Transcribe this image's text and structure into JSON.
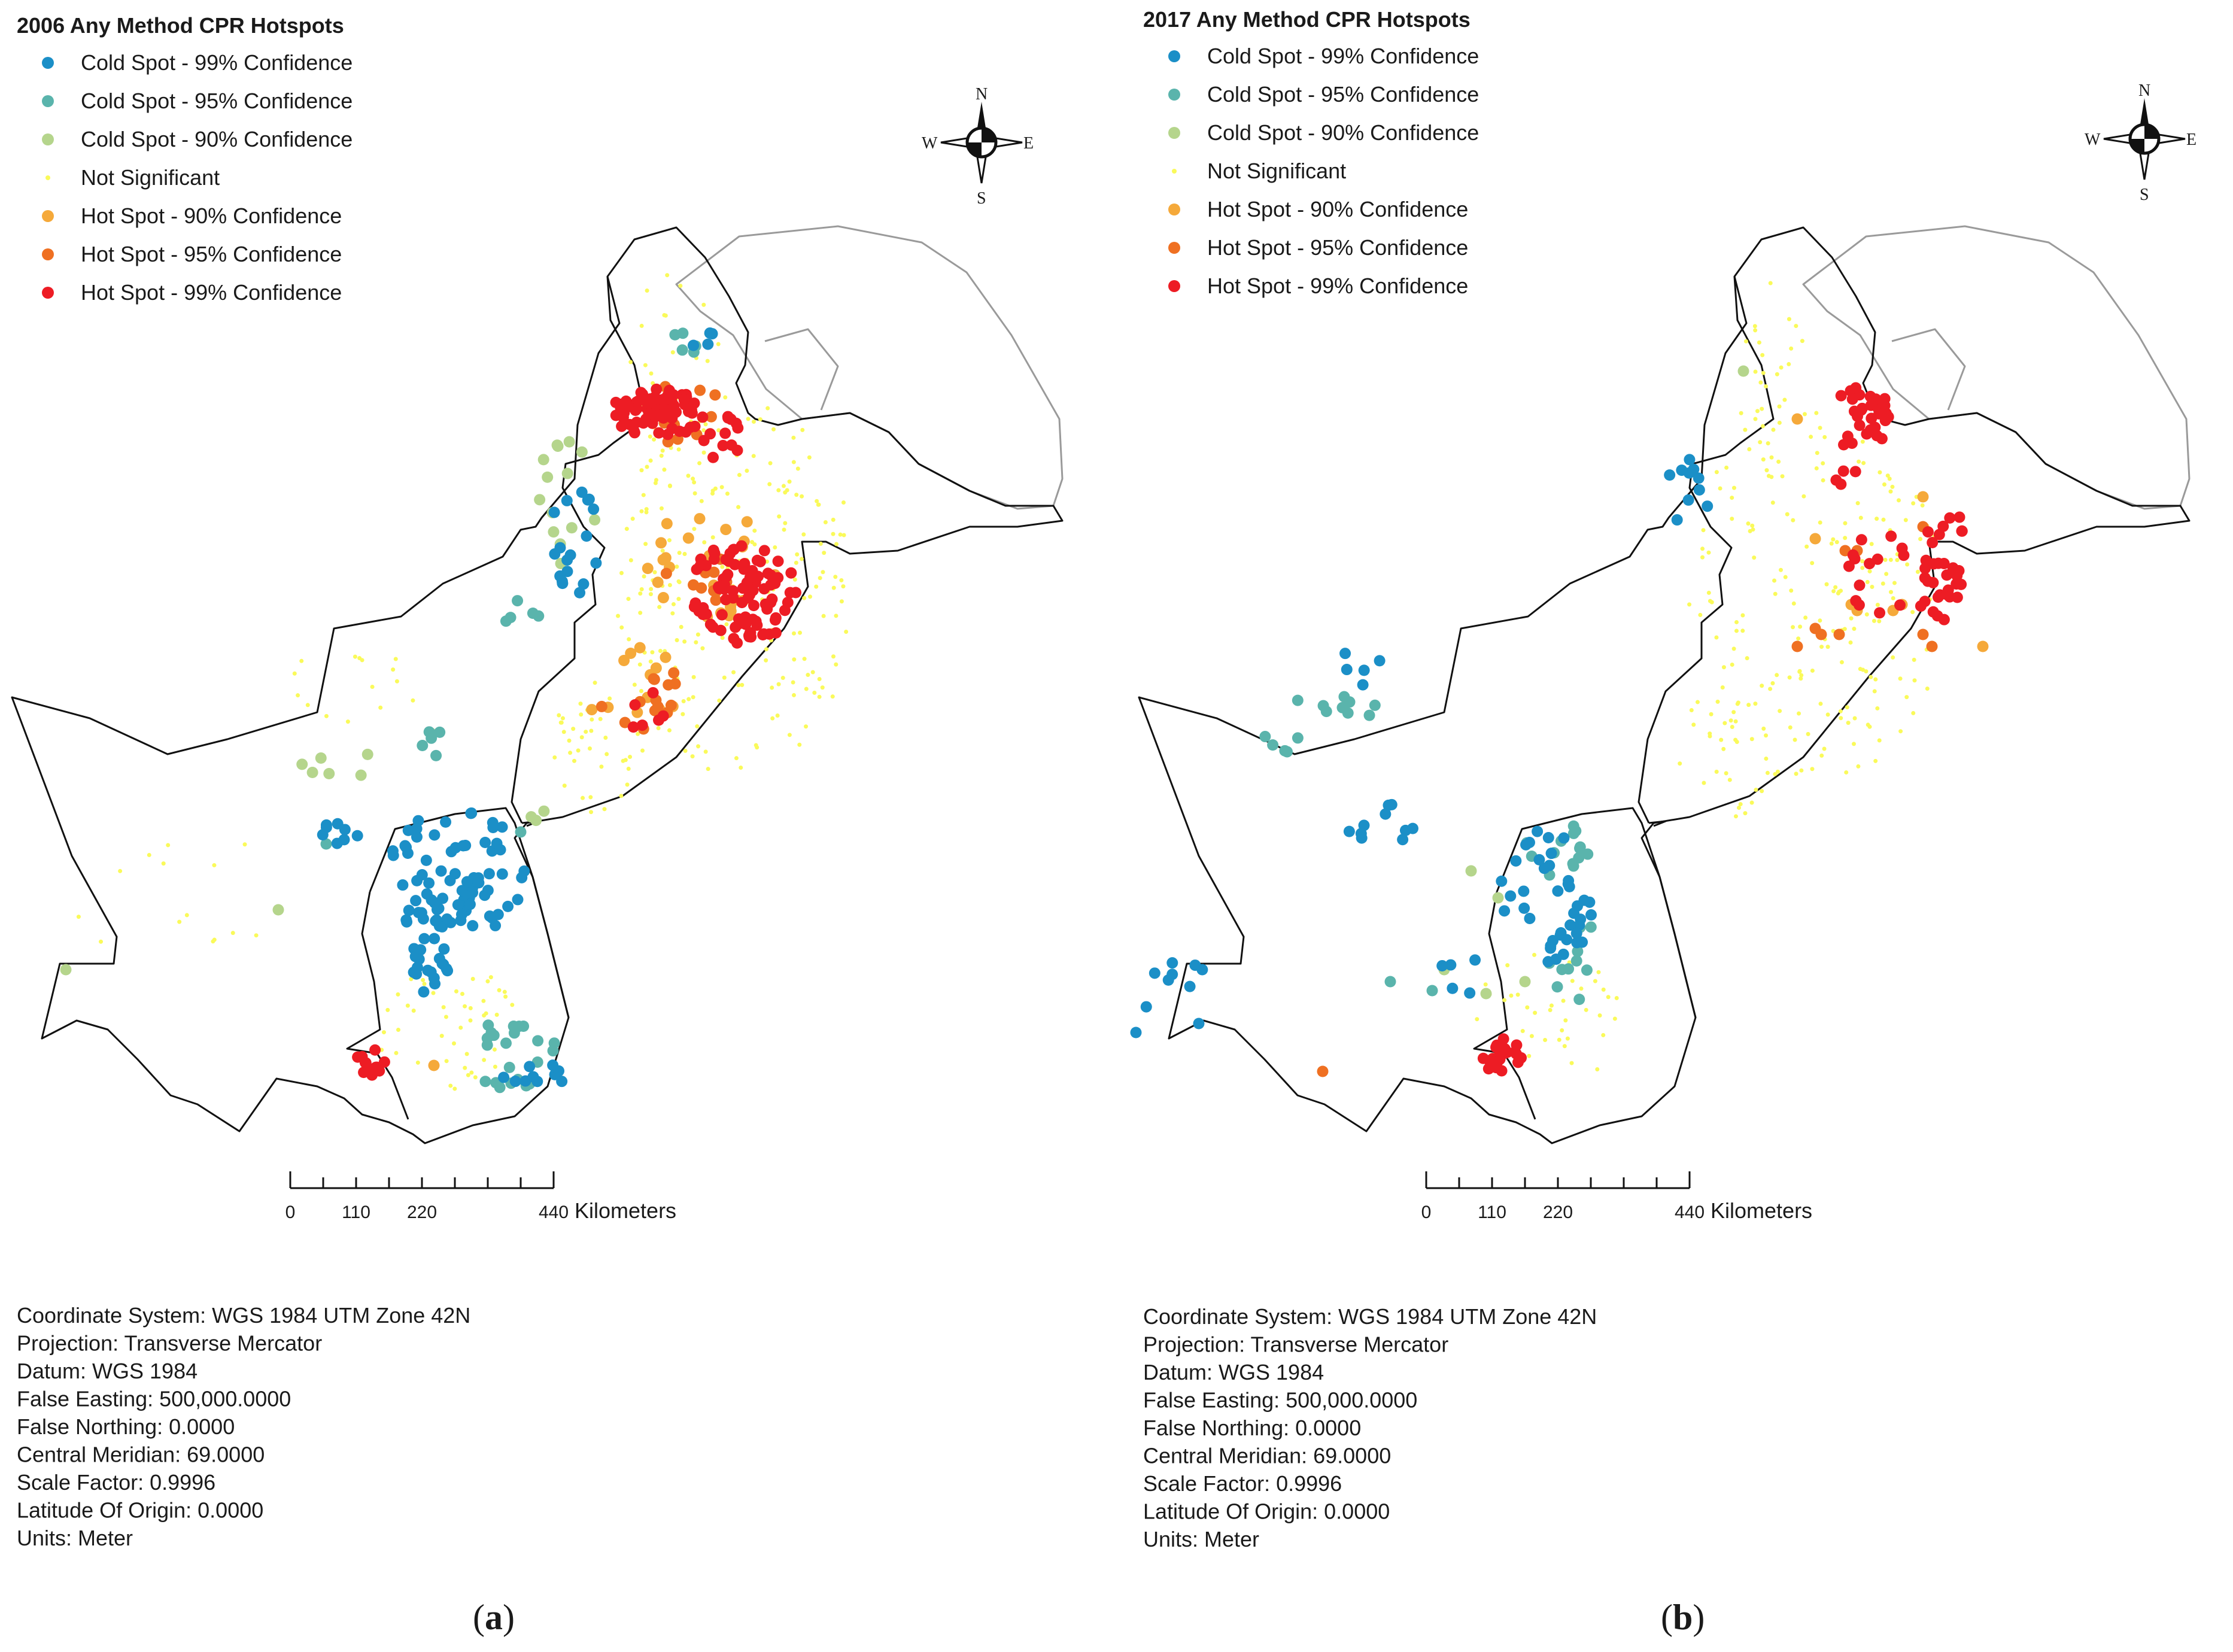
{
  "colors": {
    "cold99": "#1b8fc7",
    "cold95": "#5ab4ac",
    "cold90": "#b5d58c",
    "notsig": "#fafa5a",
    "hot90": "#f5a93a",
    "hot95": "#ef7022",
    "hot99": "#ed1c24"
  },
  "legend_classes": [
    {
      "key": "cold99",
      "label": "Cold Spot - 99% Confidence"
    },
    {
      "key": "cold95",
      "label": "Cold Spot - 95% Confidence"
    },
    {
      "key": "cold90",
      "label": "Cold Spot - 90% Confidence"
    },
    {
      "key": "notsig",
      "label": "Not Significant"
    },
    {
      "key": "hot90",
      "label": "Hot Spot - 90% Confidence"
    },
    {
      "key": "hot95",
      "label": "Hot Spot - 95% Confidence"
    },
    {
      "key": "hot99",
      "label": "Hot Spot - 99% Confidence"
    }
  ],
  "compass": {
    "n": "N",
    "s": "S",
    "e": "E",
    "w": "W"
  },
  "scalebar": {
    "ticks": [
      "0",
      "110",
      "220",
      "440"
    ],
    "unit": "Kilometers"
  },
  "projection_info": [
    "Coordinate System: WGS 1984 UTM Zone 42N",
    "Projection: Transverse Mercator",
    "Datum: WGS 1984",
    "False Easting: 500,000.0000",
    "False Northing: 0.0000",
    "Central Meridian: 69.0000",
    "Scale Factor: 0.9996",
    "Latitude Of Origin: 0.0000",
    "Units: Meter"
  ],
  "panels": [
    {
      "id": "a",
      "title": "2006 Any Method CPR Hotspots",
      "caption_letter": "a",
      "hotspot_emphasis": "north-east and Karachi hot spots, extensive Sindh cold spots"
    },
    {
      "id": "b",
      "title": "2017 Any Method CPR Hotspots",
      "caption_letter": "b",
      "hotspot_emphasis": "fewer hot spots in Punjab, Karachi hot spot persists"
    }
  ]
}
